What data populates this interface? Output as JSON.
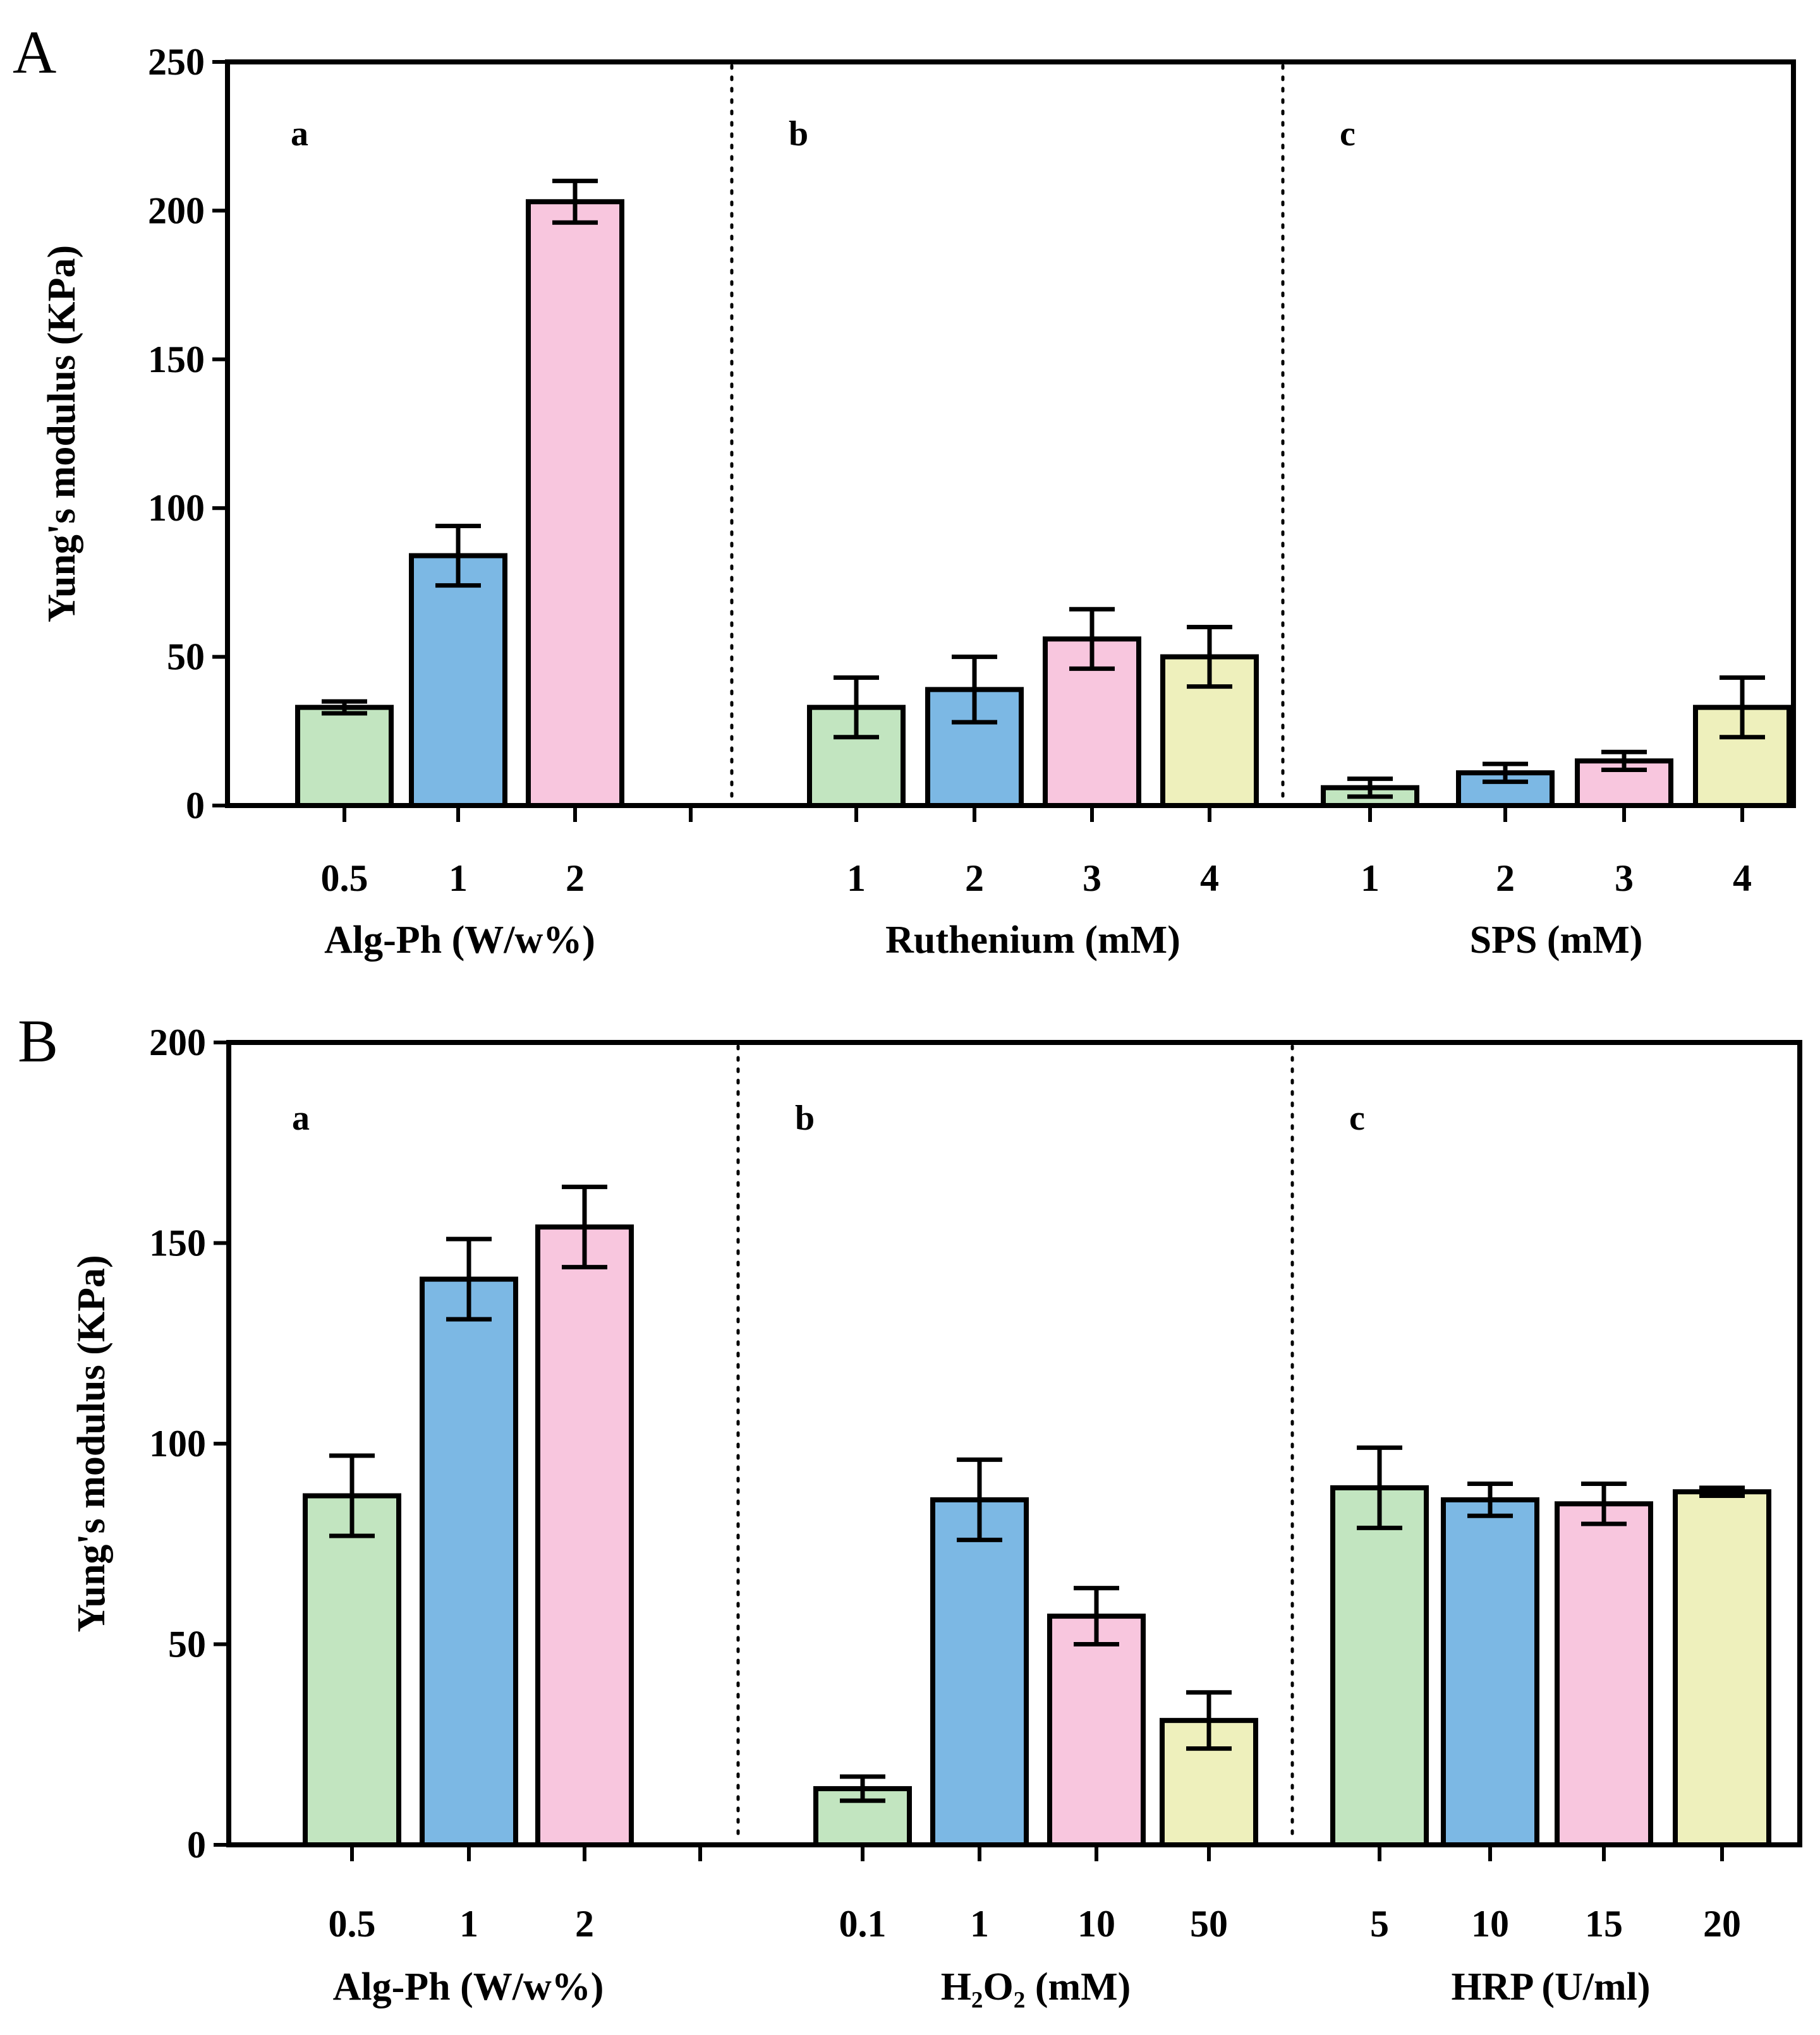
{
  "colors": {
    "green": "#c2e5c0",
    "blue": "#7cb8e4",
    "pink": "#f8c6de",
    "yellow": "#eef0bc"
  },
  "chart_data": [
    {
      "type": "bar",
      "panel_letter": "A",
      "ylabel": "Yung's modulus (KPa)",
      "ylim": [
        0,
        250
      ],
      "yticks": [
        0,
        50,
        100,
        150,
        200,
        250
      ],
      "grid": false,
      "groups": [
        {
          "sublabel": "a",
          "xlabel": "Alg-Ph (W/w%)",
          "categories": [
            "0.5",
            "1",
            "2"
          ],
          "values": [
            33,
            84,
            203
          ],
          "errors": [
            2,
            10,
            7
          ],
          "colors": [
            "green",
            "blue",
            "pink"
          ]
        },
        {
          "sublabel": "b",
          "xlabel": "Ruthenium (mM)",
          "categories": [
            "1",
            "2",
            "3",
            "4"
          ],
          "values": [
            33,
            39,
            56,
            50
          ],
          "errors": [
            10,
            11,
            10,
            10
          ],
          "colors": [
            "green",
            "blue",
            "pink",
            "yellow"
          ]
        },
        {
          "sublabel": "c",
          "xlabel": "SPS (mM)",
          "categories": [
            "1",
            "2",
            "3",
            "4"
          ],
          "values": [
            6,
            11,
            15,
            33
          ],
          "errors": [
            3,
            3,
            3,
            10
          ],
          "colors": [
            "green",
            "blue",
            "pink",
            "yellow"
          ]
        }
      ]
    },
    {
      "type": "bar",
      "panel_letter": "B",
      "ylabel": "Yung's modulus (KPa)",
      "ylim": [
        0,
        200
      ],
      "yticks": [
        0,
        50,
        100,
        150,
        200
      ],
      "grid": false,
      "groups": [
        {
          "sublabel": "a",
          "xlabel": "Alg-Ph (W/w%)",
          "categories": [
            "0.5",
            "1",
            "2"
          ],
          "values": [
            87,
            141,
            154
          ],
          "errors": [
            10,
            10,
            10
          ],
          "colors": [
            "green",
            "blue",
            "pink"
          ]
        },
        {
          "sublabel": "b",
          "xlabel": "H₂O₂ (mM)",
          "categories": [
            "0.1",
            "1",
            "10",
            "50"
          ],
          "values": [
            14,
            86,
            57,
            31
          ],
          "errors": [
            3,
            10,
            7,
            7
          ],
          "colors": [
            "green",
            "blue",
            "pink",
            "yellow"
          ]
        },
        {
          "sublabel": "c",
          "xlabel": "HRP (U/ml)",
          "categories": [
            "5",
            "10",
            "15",
            "20"
          ],
          "values": [
            89,
            86,
            85,
            88
          ],
          "errors": [
            10,
            4,
            5,
            1
          ],
          "colors": [
            "green",
            "blue",
            "pink",
            "yellow"
          ]
        }
      ]
    }
  ]
}
